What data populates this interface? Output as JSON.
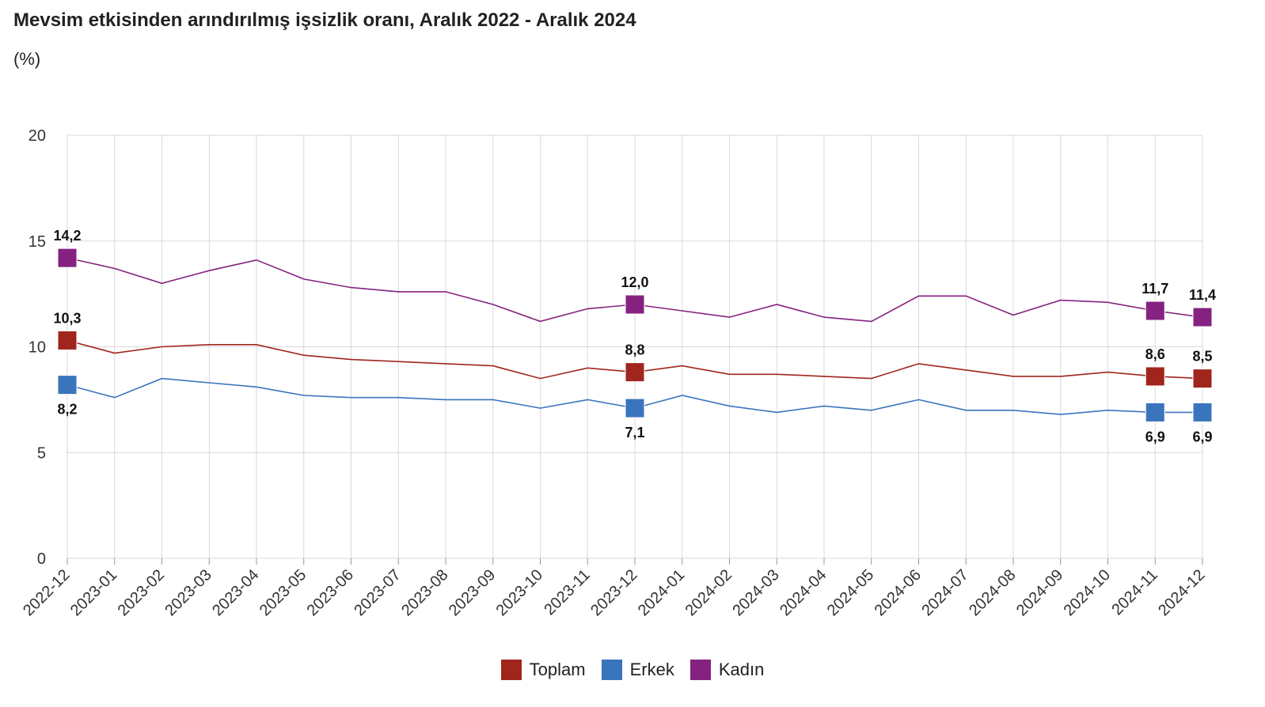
{
  "title": "Mevsim etkisinden arındırılmış işsizlik oranı, Aralık 2022 - Aralık 2024",
  "subtitle": "(%)",
  "colors": {
    "Toplam": "#a0251c",
    "Erkek": "#3a74bd",
    "Kadın": "#852280"
  },
  "chart_data": {
    "type": "line",
    "title": "Mevsim etkisinden arındırılmış işsizlik oranı, Aralık 2022 - Aralık 2024",
    "subtitle": "(%)",
    "ylim": [
      0,
      20
    ],
    "yticks": [
      "0",
      "5",
      "10",
      "15",
      "20"
    ],
    "grid": true,
    "legend_position": "bottom",
    "categories": [
      "2022-12",
      "2023-01",
      "2023-02",
      "2023-03",
      "2023-04",
      "2023-05",
      "2023-06",
      "2023-07",
      "2023-08",
      "2023-09",
      "2023-10",
      "2023-11",
      "2023-12",
      "2024-01",
      "2024-02",
      "2024-03",
      "2024-04",
      "2024-05",
      "2024-06",
      "2024-07",
      "2024-08",
      "2024-09",
      "2024-10",
      "2024-11",
      "2024-12"
    ],
    "series": [
      {
        "name": "Toplam",
        "values": [
          10.3,
          9.7,
          10.0,
          10.1,
          10.1,
          9.6,
          9.4,
          9.3,
          9.2,
          9.1,
          8.5,
          9.0,
          8.8,
          9.1,
          8.7,
          8.7,
          8.6,
          8.5,
          9.2,
          8.9,
          8.6,
          8.6,
          8.8,
          8.6,
          8.5
        ]
      },
      {
        "name": "Erkek",
        "values": [
          8.2,
          7.6,
          8.5,
          8.3,
          8.1,
          7.7,
          7.6,
          7.6,
          7.5,
          7.5,
          7.1,
          7.5,
          7.1,
          7.7,
          7.2,
          6.9,
          7.2,
          7.0,
          7.5,
          7.0,
          7.0,
          6.8,
          7.0,
          6.9,
          6.9
        ]
      },
      {
        "name": "Kadın",
        "values": [
          14.2,
          13.7,
          13.0,
          13.6,
          14.1,
          13.2,
          12.8,
          12.6,
          12.6,
          12.0,
          11.2,
          11.8,
          12.0,
          11.7,
          11.4,
          12.0,
          11.4,
          11.2,
          12.4,
          12.4,
          11.5,
          12.2,
          12.1,
          11.7,
          11.4
        ]
      }
    ],
    "data_labels": [
      {
        "series": "Kadın",
        "index": 0,
        "text": "14,2",
        "pos": "above"
      },
      {
        "series": "Toplam",
        "index": 0,
        "text": "10,3",
        "pos": "above"
      },
      {
        "series": "Erkek",
        "index": 0,
        "text": "8,2",
        "pos": "below"
      },
      {
        "series": "Kadın",
        "index": 12,
        "text": "12,0",
        "pos": "above"
      },
      {
        "series": "Toplam",
        "index": 12,
        "text": "8,8",
        "pos": "above"
      },
      {
        "series": "Erkek",
        "index": 12,
        "text": "7,1",
        "pos": "below"
      },
      {
        "series": "Kadın",
        "index": 23,
        "text": "11,7",
        "pos": "above"
      },
      {
        "series": "Toplam",
        "index": 23,
        "text": "8,6",
        "pos": "above"
      },
      {
        "series": "Erkek",
        "index": 23,
        "text": "6,9",
        "pos": "below"
      },
      {
        "series": "Kadın",
        "index": 24,
        "text": "11,4",
        "pos": "above"
      },
      {
        "series": "Toplam",
        "index": 24,
        "text": "8,5",
        "pos": "above"
      },
      {
        "series": "Erkek",
        "index": 24,
        "text": "6,9",
        "pos": "below"
      }
    ]
  },
  "legend": [
    {
      "label": "Toplam",
      "color": "#a0251c"
    },
    {
      "label": "Erkek",
      "color": "#3a74bd"
    },
    {
      "label": "Kadın",
      "color": "#852280"
    }
  ]
}
